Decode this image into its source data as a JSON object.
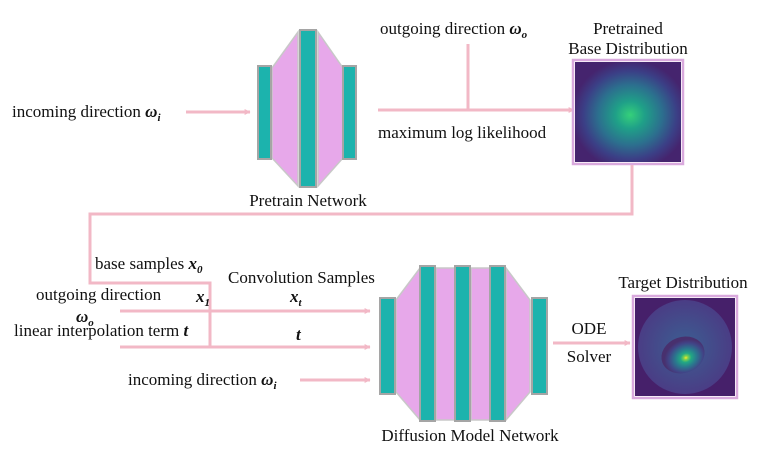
{
  "colors": {
    "arrow": "#f2b8c6",
    "trap": "#e7a8ea",
    "bar": "#1cb3ad",
    "bar_stroke": "#a5a5a5",
    "frame": "#d9a9dd"
  },
  "top": {
    "incoming": {
      "text": "incoming direction ",
      "sym": "ω",
      "sub": "i"
    },
    "outgoing": {
      "text": "outgoing direction ",
      "sym": "ω",
      "sub": "o"
    },
    "mle": "maximum log likelihood",
    "pretrain_network": "Pretrain Network",
    "pretrained_title_line1": "Pretrained",
    "pretrained_title_line2": "Base Distribution"
  },
  "bottom": {
    "base_samples": {
      "text": "base samples ",
      "sym": "x",
      "sub": "0"
    },
    "outgoing_label": "outgoing direction",
    "omega_o": {
      "sym": "ω",
      "sub": "o"
    },
    "x1": {
      "sym": "x",
      "sub": "1"
    },
    "linear_interp": {
      "text": "linear interpolation term ",
      "sym": "t"
    },
    "convolution_samples": "Convolution Samples",
    "xt": {
      "sym": "x",
      "sub": "t"
    },
    "t": {
      "sym": "t"
    },
    "incoming": {
      "text": "incoming direction  ",
      "sym": "ω",
      "sub": "i"
    },
    "ode": "ODE",
    "solver": "Solver",
    "diffusion_network": "Diffusion Model Network",
    "target_title": "Target Distribution"
  }
}
